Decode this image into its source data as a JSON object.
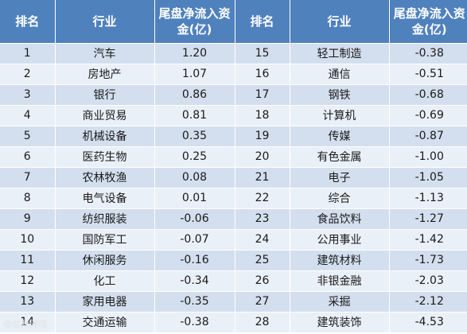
{
  "headers": {
    "rank": "排名",
    "industry": "行业",
    "amount": "尾盘净流入资金(亿)"
  },
  "rows": [
    {
      "left": {
        "rank": "1",
        "industry": "汽车",
        "amount": "1.20"
      },
      "right": {
        "rank": "15",
        "industry": "轻工制造",
        "amount": "-0.38"
      }
    },
    {
      "left": {
        "rank": "2",
        "industry": "房地产",
        "amount": "1.07"
      },
      "right": {
        "rank": "16",
        "industry": "通信",
        "amount": "-0.51"
      }
    },
    {
      "left": {
        "rank": "3",
        "industry": "银行",
        "amount": "0.86"
      },
      "right": {
        "rank": "17",
        "industry": "钢铁",
        "amount": "-0.68"
      }
    },
    {
      "left": {
        "rank": "4",
        "industry": "商业贸易",
        "amount": "0.81"
      },
      "right": {
        "rank": "18",
        "industry": "计算机",
        "amount": "-0.69"
      }
    },
    {
      "left": {
        "rank": "5",
        "industry": "机械设备",
        "amount": "0.35"
      },
      "right": {
        "rank": "19",
        "industry": "传媒",
        "amount": "-0.87"
      }
    },
    {
      "left": {
        "rank": "6",
        "industry": "医药生物",
        "amount": "0.25"
      },
      "right": {
        "rank": "20",
        "industry": "有色金属",
        "amount": "-1.00"
      }
    },
    {
      "left": {
        "rank": "7",
        "industry": "农林牧渔",
        "amount": "0.08"
      },
      "right": {
        "rank": "21",
        "industry": "电子",
        "amount": "-1.05"
      }
    },
    {
      "left": {
        "rank": "8",
        "industry": "电气设备",
        "amount": "0.01"
      },
      "right": {
        "rank": "22",
        "industry": "综合",
        "amount": "-1.13"
      }
    },
    {
      "left": {
        "rank": "9",
        "industry": "纺织服装",
        "amount": "-0.06"
      },
      "right": {
        "rank": "23",
        "industry": "食品饮料",
        "amount": "-1.27"
      }
    },
    {
      "left": {
        "rank": "10",
        "industry": "国防军工",
        "amount": "-0.07"
      },
      "right": {
        "rank": "24",
        "industry": "公用事业",
        "amount": "-1.42"
      }
    },
    {
      "left": {
        "rank": "11",
        "industry": "休闲服务",
        "amount": "-0.16"
      },
      "right": {
        "rank": "25",
        "industry": "建筑材料",
        "amount": "-1.73"
      }
    },
    {
      "left": {
        "rank": "12",
        "industry": "化工",
        "amount": "-0.34"
      },
      "right": {
        "rank": "26",
        "industry": "非银金融",
        "amount": "-2.03"
      }
    },
    {
      "left": {
        "rank": "13",
        "industry": "家用电器",
        "amount": "-0.35"
      },
      "right": {
        "rank": "27",
        "industry": "采掘",
        "amount": "-2.12"
      }
    },
    {
      "left": {
        "rank": "14",
        "industry": "交通运输",
        "amount": "-0.38"
      },
      "right": {
        "rank": "28",
        "industry": "建筑装饰",
        "amount": "-4.53"
      }
    }
  ],
  "watermark": "@众股网讯"
}
